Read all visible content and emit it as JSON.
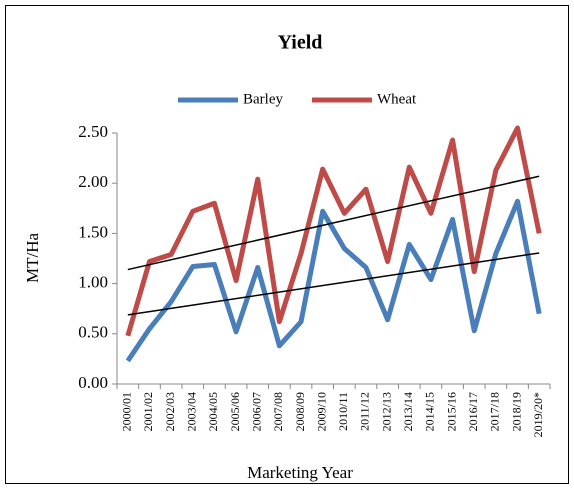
{
  "chart_data": {
    "type": "line",
    "title": "Yield",
    "y_label": "MT/Ha",
    "x_label": "Marketing Year",
    "categories": [
      "2000/01",
      "2001/02",
      "2002/03",
      "2003/04",
      "2004/05",
      "2005/06",
      "2006/07",
      "2007/08",
      "2008/09",
      "2009/10",
      "2010/11",
      "2011/12",
      "2012/13",
      "2013/14",
      "2014/15",
      "2015/16",
      "2016/17",
      "2017/18",
      "2018/19",
      "2019/20*"
    ],
    "series": [
      {
        "name": "Barley",
        "color": "#4a7ebb",
        "values": [
          0.23,
          0.55,
          0.82,
          1.17,
          1.19,
          0.52,
          1.16,
          0.38,
          0.62,
          1.72,
          1.35,
          1.16,
          0.64,
          1.39,
          1.04,
          1.64,
          0.53,
          1.3,
          1.82,
          0.7
        ]
      },
      {
        "name": "Wheat",
        "color": "#be4b48",
        "values": [
          0.48,
          1.22,
          1.29,
          1.72,
          1.8,
          1.03,
          2.04,
          0.62,
          1.3,
          2.14,
          1.7,
          1.94,
          1.22,
          2.16,
          1.7,
          2.43,
          1.12,
          2.13,
          2.55,
          1.5
        ]
      }
    ],
    "trendline": true,
    "ylim": [
      0,
      2.5
    ],
    "yticks": [
      {
        "value": 0,
        "label": "0.00"
      },
      {
        "value": 0.5,
        "label": "0.50"
      },
      {
        "value": 1,
        "label": "1.00"
      },
      {
        "value": 1.5,
        "label": "1.50"
      },
      {
        "value": 2,
        "label": "2.00"
      },
      {
        "value": 2.5,
        "label": "2.50"
      }
    ],
    "grid": false,
    "legend": "top"
  }
}
